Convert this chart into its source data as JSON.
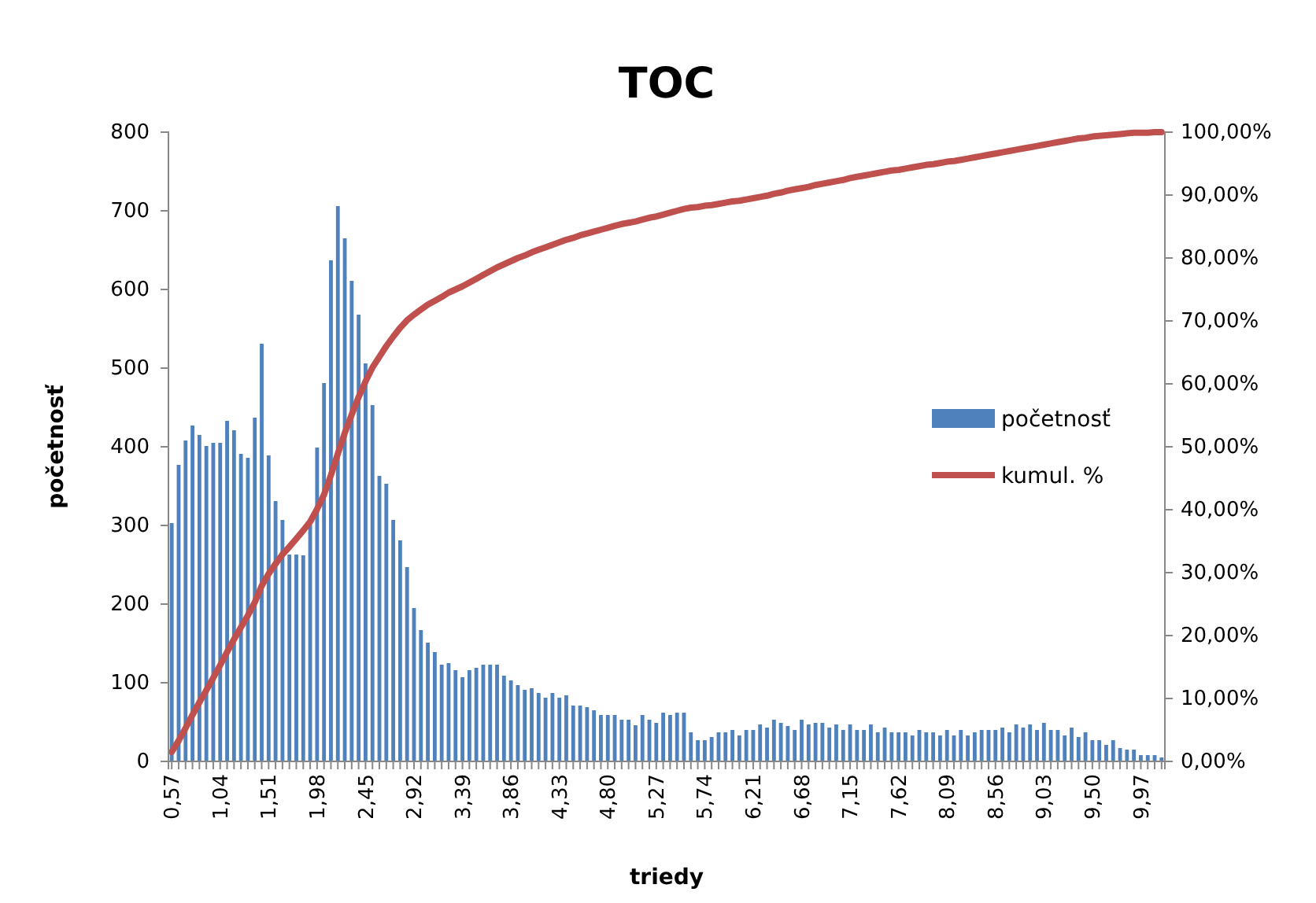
{
  "chart_data": {
    "type": "bar",
    "title": "TOC",
    "xlabel": "triedy",
    "ylabel": "početnosť",
    "categories": [
      "0,57",
      null,
      null,
      null,
      null,
      null,
      null,
      "1,04",
      null,
      null,
      null,
      null,
      null,
      null,
      "1,51",
      null,
      null,
      null,
      null,
      null,
      null,
      "1,98",
      null,
      null,
      null,
      null,
      null,
      null,
      "2,45",
      null,
      null,
      null,
      null,
      null,
      null,
      "2,92",
      null,
      null,
      null,
      null,
      null,
      null,
      "3,39",
      null,
      null,
      null,
      null,
      null,
      null,
      "3,86",
      null,
      null,
      null,
      null,
      null,
      null,
      "4,33",
      null,
      null,
      null,
      null,
      null,
      null,
      "4,80",
      null,
      null,
      null,
      null,
      null,
      null,
      "5,27",
      null,
      null,
      null,
      null,
      null,
      null,
      "5,74",
      null,
      null,
      null,
      null,
      null,
      null,
      "6,21",
      null,
      null,
      null,
      null,
      null,
      null,
      "6,68",
      null,
      null,
      null,
      null,
      null,
      null,
      "7,15",
      null,
      null,
      null,
      null,
      null,
      null,
      "7,62",
      null,
      null,
      null,
      null,
      null,
      null,
      "8,09",
      null,
      null,
      null,
      null,
      null,
      null,
      "8,56",
      null,
      null,
      null,
      null,
      null,
      null,
      "9,03",
      null,
      null,
      null,
      null,
      null,
      null,
      "9,50",
      null,
      null,
      null,
      null,
      null,
      null,
      "9,97",
      null,
      null,
      null
    ],
    "series": [
      {
        "name": "početnosť",
        "color": "#4f81bd",
        "values": [
          303,
          377,
          408,
          427,
          415,
          401,
          405,
          405,
          433,
          421,
          391,
          386,
          437,
          531,
          389,
          331,
          307,
          263,
          263,
          262,
          301,
          399,
          481,
          637,
          706,
          665,
          611,
          568,
          506,
          453,
          363,
          353,
          307,
          281,
          247,
          195,
          167,
          151,
          139,
          123,
          125,
          116,
          107,
          116,
          119,
          123,
          123,
          123,
          109,
          103,
          97,
          91,
          93,
          87,
          81,
          87,
          81,
          84,
          71,
          71,
          69,
          65,
          59,
          59,
          59,
          53,
          53,
          46,
          59,
          53,
          49,
          62,
          59,
          62,
          62,
          37,
          27,
          27,
          31,
          37,
          37,
          40,
          33,
          40,
          40,
          47,
          43,
          53,
          49,
          45,
          40,
          53,
          47,
          49,
          49,
          43,
          47,
          40,
          47,
          40,
          40,
          47,
          37,
          43,
          37,
          37,
          37,
          33,
          40,
          37,
          37,
          33,
          40,
          33,
          40,
          33,
          37,
          40,
          40,
          40,
          43,
          37,
          47,
          43,
          47,
          40,
          49,
          40,
          40,
          33,
          43,
          31,
          37,
          27,
          27,
          21,
          27,
          17,
          15,
          15,
          8,
          8,
          8,
          5
        ]
      },
      {
        "name": "kumul. %",
        "type": "line",
        "axis": "y2",
        "color": "#c0504d",
        "values": [
          1.5,
          3.3,
          5.3,
          7.4,
          9.4,
          11.3,
          13.3,
          15.3,
          17.4,
          19.4,
          21.3,
          23.2,
          25.3,
          27.9,
          29.8,
          31.4,
          32.9,
          34.1,
          35.4,
          36.7,
          38.1,
          40.1,
          42.4,
          45.5,
          48.9,
          52.2,
          55.1,
          57.9,
          60.4,
          62.6,
          64.3,
          66.0,
          67.5,
          68.9,
          70.1,
          71.0,
          71.8,
          72.6,
          73.2,
          73.8,
          74.5,
          75.0,
          75.5,
          76.1,
          76.7,
          77.3,
          77.9,
          78.5,
          79.0,
          79.5,
          80.0,
          80.4,
          80.9,
          81.3,
          81.7,
          82.1,
          82.5,
          82.9,
          83.2,
          83.6,
          83.9,
          84.2,
          84.5,
          84.8,
          85.1,
          85.4,
          85.6,
          85.8,
          86.1,
          86.4,
          86.6,
          86.9,
          87.2,
          87.5,
          87.8,
          88.0,
          88.1,
          88.3,
          88.4,
          88.6,
          88.8,
          89.0,
          89.1,
          89.3,
          89.5,
          89.7,
          89.9,
          90.2,
          90.4,
          90.7,
          90.9,
          91.1,
          91.3,
          91.6,
          91.8,
          92.0,
          92.2,
          92.4,
          92.7,
          92.9,
          93.1,
          93.3,
          93.5,
          93.7,
          93.9,
          94.0,
          94.2,
          94.4,
          94.6,
          94.8,
          94.9,
          95.1,
          95.3,
          95.4,
          95.6,
          95.8,
          96.0,
          96.2,
          96.4,
          96.6,
          96.8,
          97.0,
          97.2,
          97.4,
          97.6,
          97.8,
          98.0,
          98.2,
          98.4,
          98.6,
          98.8,
          99.0,
          99.1,
          99.3,
          99.4,
          99.5,
          99.6,
          99.7,
          99.8,
          99.9,
          99.9,
          99.9,
          100.0,
          100.0
        ]
      }
    ],
    "ylim": [
      0,
      800
    ],
    "yticks": [
      0,
      100,
      200,
      300,
      400,
      500,
      600,
      700,
      800
    ],
    "y2lim": [
      0,
      100
    ],
    "y2ticks": [
      {
        "value": 0,
        "label": "0,00%"
      },
      {
        "value": 10,
        "label": "10,00%"
      },
      {
        "value": 20,
        "label": "20,00%"
      },
      {
        "value": 30,
        "label": "30,00%"
      },
      {
        "value": 40,
        "label": "40,00%"
      },
      {
        "value": 50,
        "label": "50,00%"
      },
      {
        "value": 60,
        "label": "60,00%"
      },
      {
        "value": 70,
        "label": "70,00%"
      },
      {
        "value": 80,
        "label": "80,00%"
      },
      {
        "value": 90,
        "label": "90,00%"
      },
      {
        "value": 100,
        "label": "100,00%"
      }
    ],
    "legend": "right",
    "grid": false
  }
}
